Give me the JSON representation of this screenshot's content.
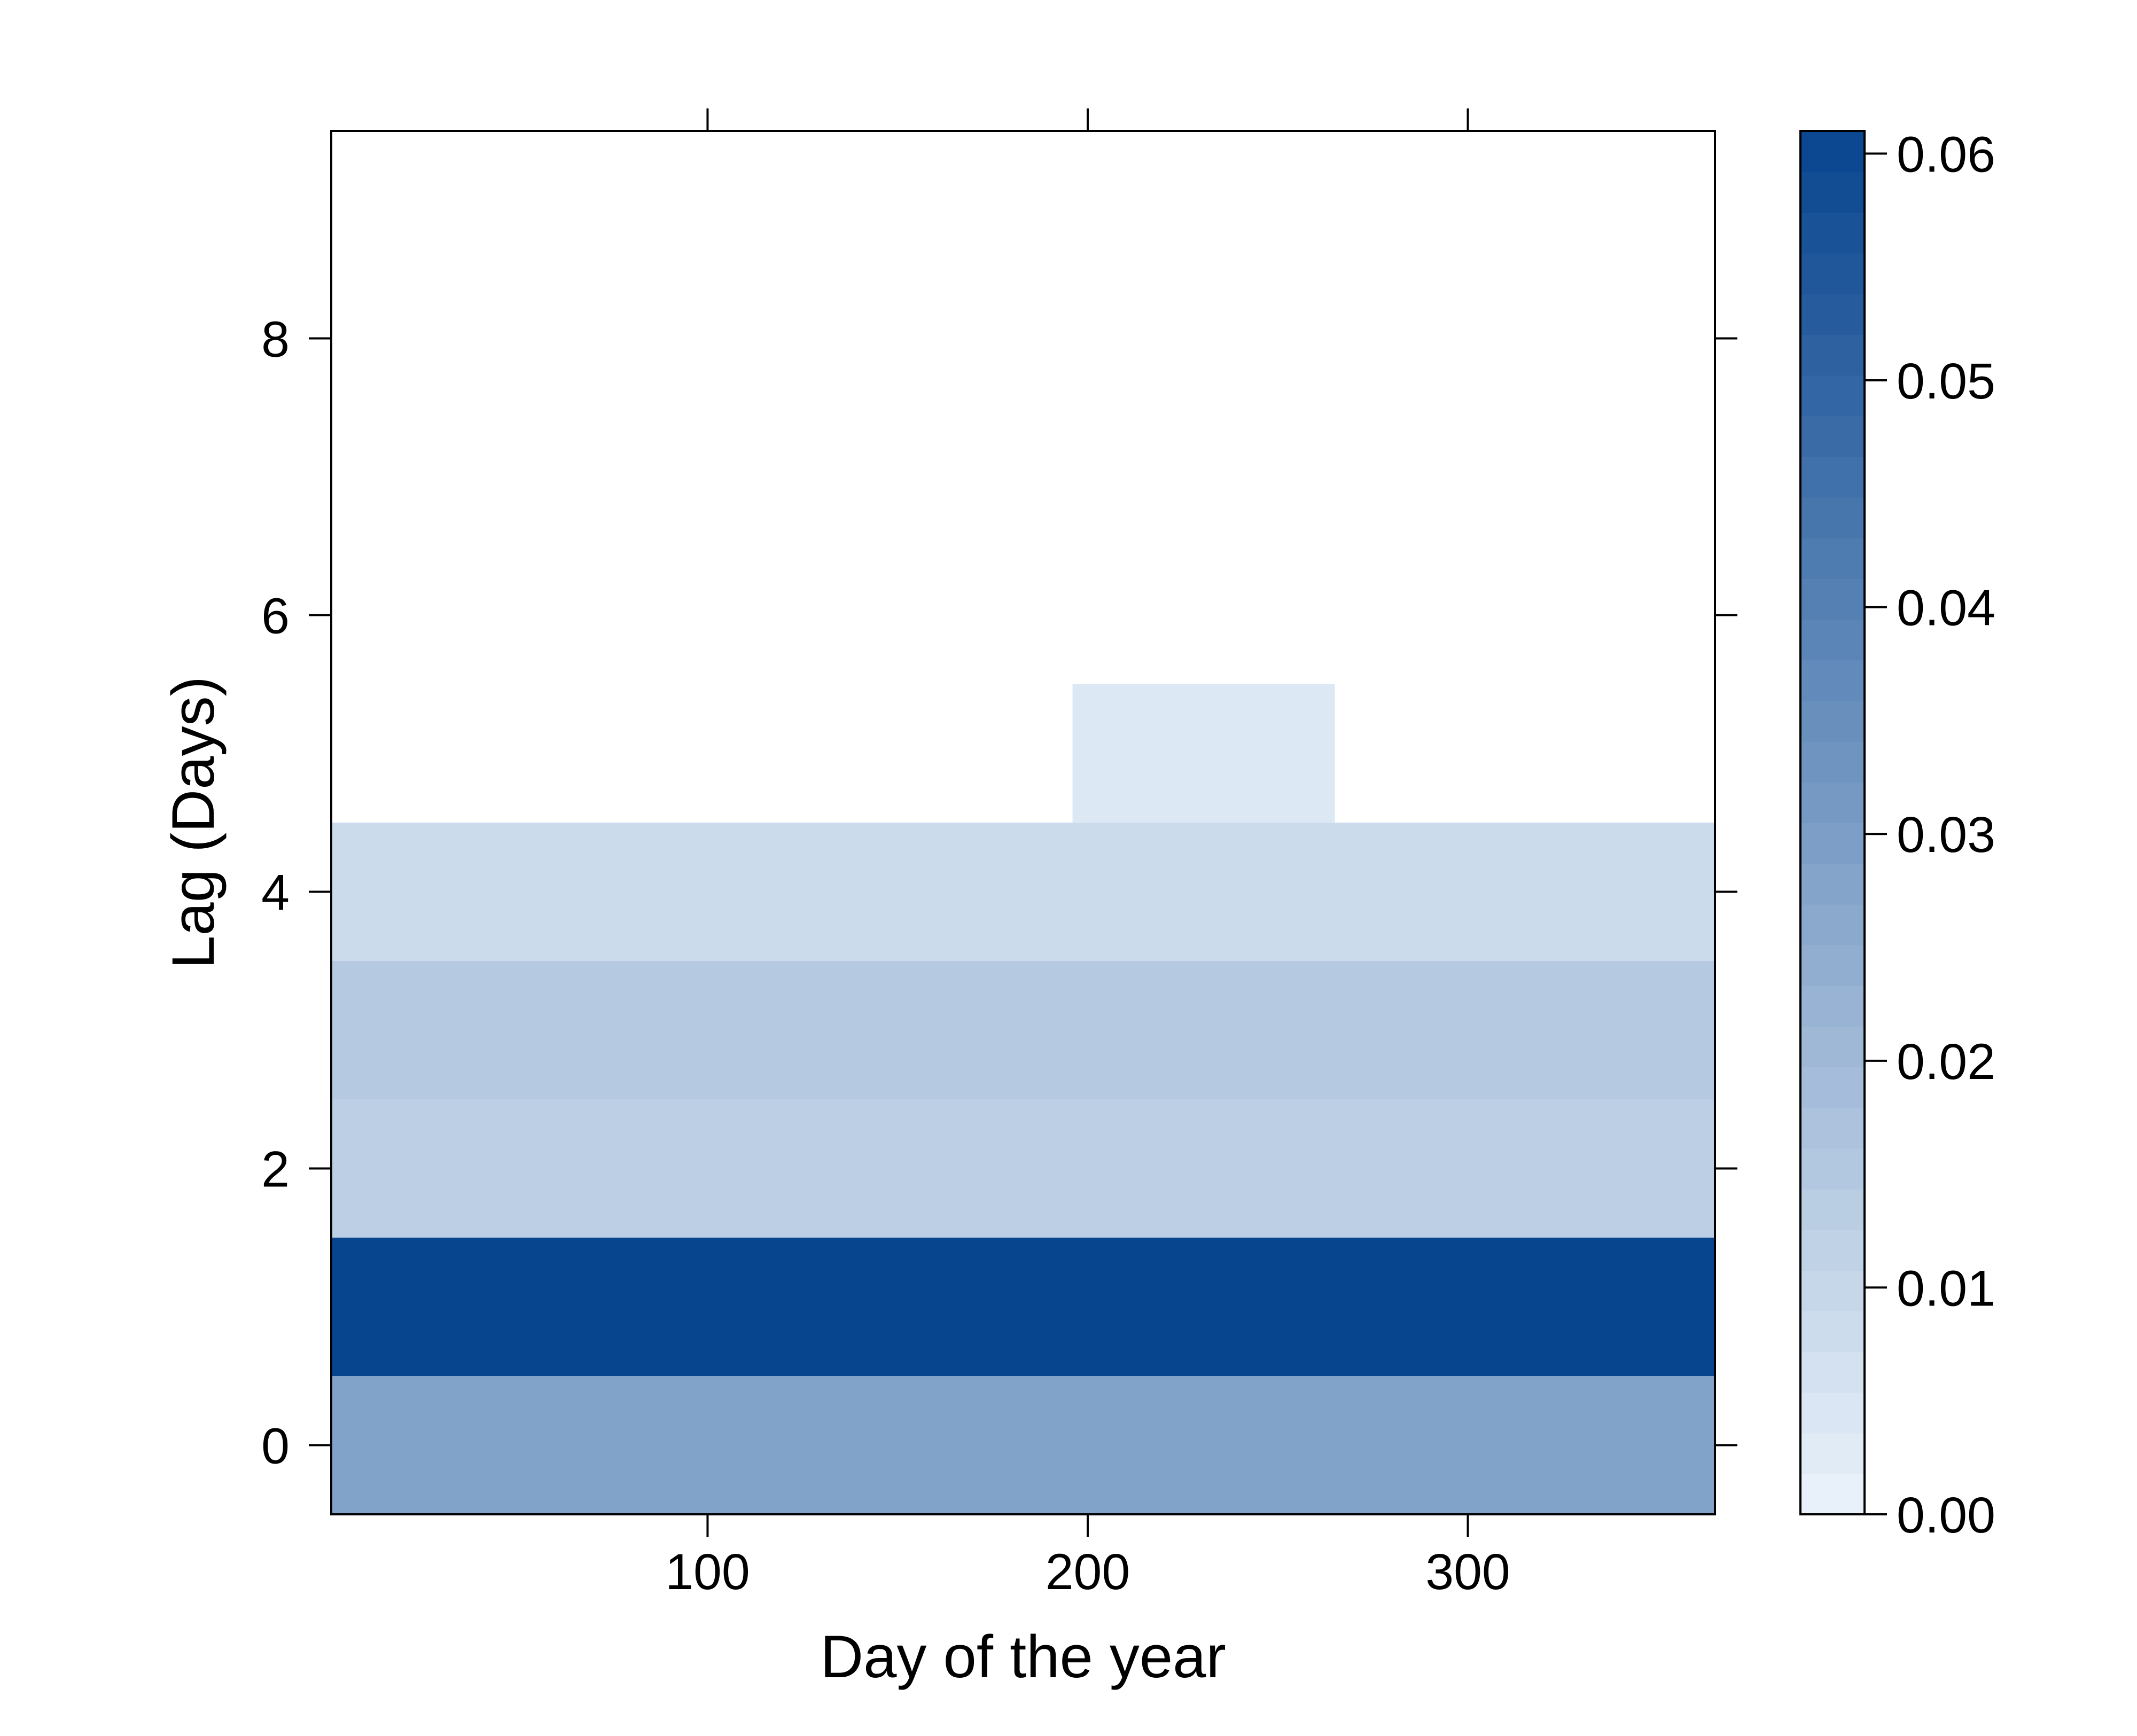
{
  "chart_data": {
    "type": "heatmap",
    "title": "",
    "xlabel": "Day of the year",
    "ylabel": "Lag (Days)",
    "xlim": [
      1,
      365
    ],
    "ylim": [
      -0.5,
      9.5
    ],
    "xticks": [
      100,
      200,
      300
    ],
    "yticks": [
      0,
      2,
      4,
      6,
      8
    ],
    "x_tick_labels": [
      "100",
      "200",
      "300"
    ],
    "y_tick_labels": [
      "0",
      "2",
      "4",
      "6",
      "8"
    ],
    "grid": false,
    "colorbar": {
      "range": [
        0,
        0.061
      ],
      "tick_values": [
        0,
        0.01,
        0.02,
        0.03,
        0.04,
        0.05,
        0.06
      ],
      "tick_labels": [
        "0.00",
        "0.01",
        "0.02",
        "0.03",
        "0.04",
        "0.05",
        "0.06"
      ],
      "low_color": "#ebf3fb",
      "high_color": "#08458f",
      "palette": "Blues"
    },
    "cells": [
      {
        "lag": 0,
        "x_from": 1,
        "x_to": 365,
        "value": 0.0285
      },
      {
        "lag": 1,
        "x_from": 1,
        "x_to": 365,
        "value": 0.061
      },
      {
        "lag": 2,
        "x_from": 1,
        "x_to": 365,
        "value": 0.0125
      },
      {
        "lag": 3,
        "x_from": 1,
        "x_to": 365,
        "value": 0.0145
      },
      {
        "lag": 4,
        "x_from": 1,
        "x_to": 365,
        "value": 0.0085
      },
      {
        "lag": 5,
        "x_from": 196,
        "x_to": 265,
        "value": 0.004
      }
    ]
  }
}
